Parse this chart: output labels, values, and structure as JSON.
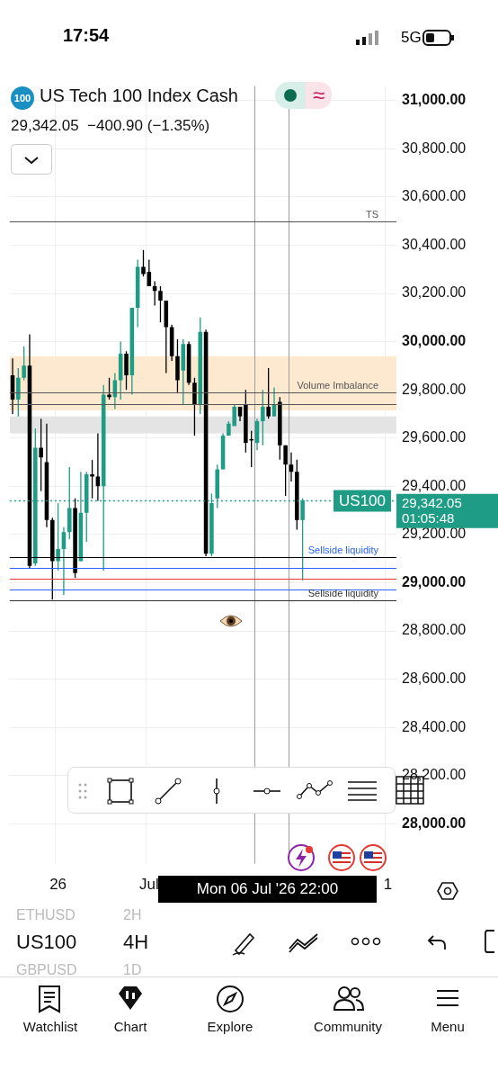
{
  "chart_data": {
    "type": "candlestick",
    "title": "US Tech 100 Index Cash",
    "subtitle": "29,342.05  −400.90 (−1.35%)",
    "categories": [
      null,
      null,
      null,
      null,
      null,
      null,
      null,
      null,
      "26",
      null,
      null,
      null,
      null,
      null,
      null,
      null,
      null,
      null,
      null,
      null,
      null,
      null,
      null,
      null,
      "Jul",
      null,
      null,
      null,
      null,
      null,
      null,
      null,
      null,
      null,
      null,
      null,
      null,
      null,
      null,
      null,
      null,
      null,
      null,
      null,
      null,
      null,
      null,
      null,
      null,
      null,
      null,
      null,
      null,
      null,
      null,
      null,
      null,
      null,
      null,
      null,
      null,
      null,
      null,
      null,
      null,
      null,
      "1",
      null
    ],
    "ohlc": [
      [
        29860,
        29930,
        29700,
        29760
      ],
      [
        29760,
        29890,
        29690,
        29850
      ],
      [
        29850,
        29980,
        29840,
        29900
      ],
      [
        29900,
        30030,
        29060,
        29070
      ],
      [
        29080,
        29640,
        29070,
        29560
      ],
      [
        29560,
        29680,
        29380,
        29520
      ],
      [
        29500,
        29660,
        29230,
        29260
      ],
      [
        29260,
        29270,
        28930,
        29090
      ],
      [
        29090,
        29330,
        29050,
        29140
      ],
      [
        29140,
        29230,
        28950,
        29210
      ],
      [
        29210,
        29480,
        29180,
        29310
      ],
      [
        29310,
        29350,
        29020,
        29040
      ],
      [
        29090,
        29460,
        29090,
        29290
      ],
      [
        29290,
        29460,
        29170,
        29450
      ],
      [
        29450,
        29510,
        29350,
        29440
      ],
      [
        29440,
        29620,
        29340,
        29400
      ],
      [
        29400,
        29820,
        29050,
        29780
      ],
      [
        29780,
        29850,
        29760,
        29770
      ],
      [
        29770,
        29870,
        29720,
        29840
      ],
      [
        29840,
        30000,
        29760,
        29950
      ],
      [
        29950,
        29960,
        29800,
        29860
      ],
      [
        29860,
        30140,
        29780,
        30140
      ],
      [
        30140,
        30340,
        30060,
        30310
      ],
      [
        30310,
        30380,
        30270,
        30280
      ],
      [
        30290,
        30340,
        30230,
        30230
      ],
      [
        30230,
        30250,
        30150,
        30210
      ],
      [
        30210,
        30230,
        30080,
        30170
      ],
      [
        30170,
        30170,
        29870,
        30060
      ],
      [
        30060,
        30070,
        29920,
        29940
      ],
      [
        29940,
        30010,
        29790,
        29840
      ],
      [
        29880,
        30010,
        29740,
        29990
      ],
      [
        29990,
        30000,
        29820,
        29830
      ],
      [
        29830,
        29850,
        29610,
        29740
      ],
      [
        29740,
        30100,
        29700,
        30040
      ],
      [
        30040,
        30050,
        29110,
        29120
      ],
      [
        29120,
        29370,
        29110,
        29330
      ],
      [
        29350,
        29490,
        29310,
        29470
      ],
      [
        29470,
        29620,
        29470,
        29610
      ],
      [
        29610,
        29670,
        29610,
        29660
      ],
      [
        29650,
        29740,
        29650,
        29730
      ],
      [
        29730,
        29730,
        29670,
        29690
      ],
      [
        29740,
        29800,
        29540,
        29580
      ],
      [
        29590,
        29630,
        29480,
        29590
      ],
      [
        29580,
        29680,
        29550,
        29670
      ],
      [
        29670,
        29800,
        29570,
        29730
      ],
      [
        29730,
        29890,
        29680,
        29690
      ],
      [
        29690,
        29810,
        29690,
        29740
      ],
      [
        29750,
        29770,
        29510,
        29570
      ],
      [
        29570,
        29570,
        29360,
        29490
      ],
      [
        29490,
        29540,
        29420,
        29460
      ],
      [
        29460,
        29510,
        29220,
        29260
      ],
      [
        29260,
        29350,
        29010,
        29342.05
      ],
      null,
      null,
      null,
      null,
      null,
      null,
      null,
      null,
      null,
      null,
      null,
      null,
      null,
      null,
      null,
      null
    ],
    "colors": [
      "#000000",
      "#1f9c85",
      "#1f9c85",
      "#000000",
      "#1f9c85",
      "#000000",
      "#000000",
      "#000000",
      "#1f9c85",
      "#1f9c85",
      "#1f9c85",
      "#000000",
      "#1f9c85",
      "#1f9c85",
      "#000000",
      "#000000",
      "#1f9c85",
      "#000000",
      "#1f9c85",
      "#1f9c85",
      "#000000",
      "#1f9c85",
      "#1f9c85",
      "#000000",
      "#000000",
      "#000000",
      "#000000",
      "#000000",
      "#000000",
      "#000000",
      "#1f9c85",
      "#000000",
      "#000000",
      "#1f9c85",
      "#000000",
      "#1f9c85",
      "#1f9c85",
      "#1f9c85",
      "#1f9c85",
      "#1f9c85",
      "#000000",
      "#000000",
      "#000000",
      "#1f9c85",
      "#1f9c85",
      "#000000",
      "#1f9c85",
      "#000000",
      "#000000",
      "#000000",
      "#000000",
      "#1f9c85",
      null,
      null,
      null,
      null,
      null,
      null,
      null,
      null,
      null,
      null,
      null,
      null,
      null,
      null,
      null,
      null
    ],
    "ylim": [
      27835,
      31060
    ],
    "yticks": [
      {
        "value": 28000,
        "label": "28,000.00"
      },
      {
        "value": 28200,
        "label": "28,200.00"
      },
      {
        "value": 28400,
        "label": "28,400.00"
      },
      {
        "value": 28600,
        "label": "28,600.00"
      },
      {
        "value": 28800,
        "label": "28,800.00"
      },
      {
        "value": 29000,
        "label": "29,000.00"
      },
      {
        "value": 29200,
        "label": "29,200.00"
      },
      {
        "value": 29400,
        "label": "29,400.00"
      },
      {
        "value": 29600,
        "label": "29,600.00"
      },
      {
        "value": 29800,
        "label": "29,800.00"
      },
      {
        "value": 30000,
        "label": "30,000.00"
      },
      {
        "value": 30200,
        "label": "30,200.00"
      },
      {
        "value": 30400,
        "label": "30,400.00"
      },
      {
        "value": 30600,
        "label": "30,600.00"
      },
      {
        "value": 30800,
        "label": "30,800.00"
      },
      {
        "value": 31000,
        "label": "31,000.00"
      }
    ],
    "grid": true,
    "bands": [
      {
        "axis": "y",
        "from": 29715,
        "to": 29940,
        "color": "#fde9cf"
      },
      {
        "axis": "y",
        "from": 29620,
        "to": 29690,
        "color": "#e4e4e4"
      }
    ],
    "ref_lines": [
      {
        "axis": "y",
        "value": 30500,
        "label": "TS",
        "color": "#555555",
        "line_style": "solid"
      },
      {
        "axis": "y",
        "value": 29790,
        "label": "Volume Imbalance",
        "color": "#555555",
        "line_style": "solid"
      },
      {
        "axis": "y",
        "value": 29740,
        "color": "#555555",
        "line_style": "solid"
      },
      {
        "axis": "y",
        "value": 29342.05,
        "label": "US100",
        "color": "#1f9c85",
        "line_style": "dotted"
      },
      {
        "axis": "y",
        "value": 29105,
        "label": "Sellside liquidity",
        "color": "#000000",
        "line_style": "solid"
      },
      {
        "axis": "y",
        "value": 29060,
        "color": "#2962ff",
        "line_style": "solid"
      },
      {
        "axis": "y",
        "value": 29015,
        "color": "#e53935",
        "line_style": "solid"
      },
      {
        "axis": "y",
        "value": 28972,
        "color": "#2962ff",
        "line_style": "solid"
      },
      {
        "axis": "y",
        "value": 28927,
        "label": "Sellside liquidity",
        "color": "#333333",
        "line_style": "solid"
      }
    ],
    "annotations": [
      "100",
      "≈",
      "01:05:48",
      "Mon 06 Jul '26 22:00",
      "17:54",
      "5G",
      "US100",
      "4H",
      "ETHUSD",
      "2H",
      "GBPUSD",
      "1D",
      "Watchlist",
      "Chart",
      "Explore",
      "Community",
      "Menu",
      "29,342.05"
    ]
  }
}
